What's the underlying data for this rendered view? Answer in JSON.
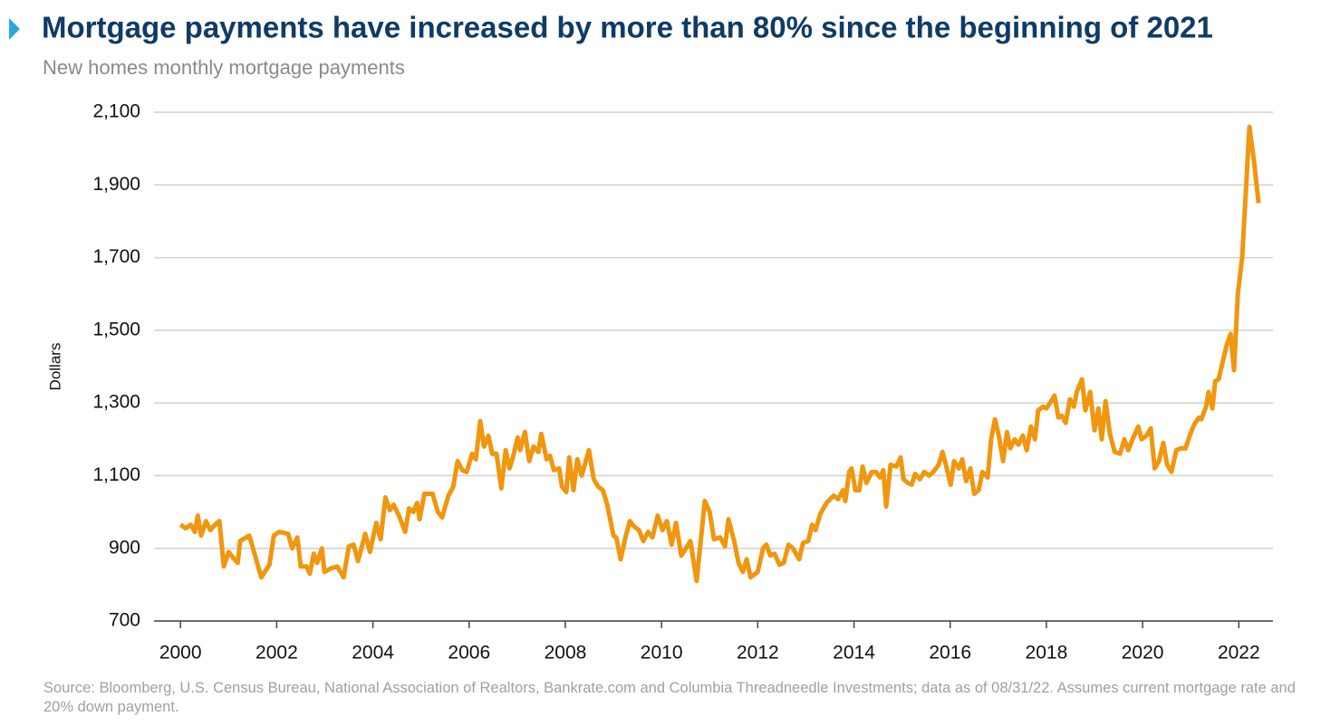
{
  "chart_data": {
    "type": "line",
    "title": "Mortgage payments have increased by more than 80% since the beginning of 2021",
    "subtitle": "New homes monthly mortgage payments",
    "y_label": "Dollars",
    "source": "Source: Bloomberg, U.S. Census Bureau, National Association of Realtors, Bankrate.com and Columbia Threadneedle Investments; data as of 08/31/22. Assumes current mortgage rate and 20% down payment.",
    "xlim": [
      1999.45,
      2022.71
    ],
    "xticks": [
      2000,
      2002,
      2004,
      2006,
      2008,
      2010,
      2012,
      2014,
      2016,
      2018,
      2020,
      2022
    ],
    "ylim": [
      700,
      2100
    ],
    "yticks": [
      700,
      {
        "value": 900,
        "label": "900"
      },
      {
        "value": 1100,
        "label": "1,100"
      },
      {
        "value": 1300,
        "label": "1,300"
      },
      {
        "value": 1500,
        "label": "1,500"
      },
      {
        "value": 1700,
        "label": "1,700"
      },
      {
        "value": 1900,
        "label": "1,900"
      },
      {
        "value": 2100,
        "label": "2,100"
      }
    ],
    "grid": true,
    "x": [
      2000.0,
      2000.11,
      2000.21,
      2000.3,
      2000.36,
      2000.43,
      2000.53,
      2000.62,
      2000.72,
      2000.81,
      2000.9,
      2001.0,
      2001.09,
      2001.19,
      2001.24,
      2001.43,
      2001.53,
      2001.68,
      2001.85,
      2001.94,
      2002.05,
      2002.24,
      2002.32,
      2002.43,
      2002.5,
      2002.62,
      2002.69,
      2002.77,
      2002.84,
      2002.94,
      2002.99,
      2003.13,
      2003.26,
      2003.39,
      2003.5,
      2003.6,
      2003.69,
      2003.84,
      2003.94,
      2004.07,
      2004.16,
      2004.26,
      2004.35,
      2004.43,
      2004.54,
      2004.67,
      2004.75,
      2004.84,
      2004.92,
      2004.97,
      2005.07,
      2005.24,
      2005.35,
      2005.44,
      2005.57,
      2005.67,
      2005.76,
      2005.86,
      2005.95,
      2006.06,
      2006.14,
      2006.23,
      2006.31,
      2006.4,
      2006.48,
      2006.57,
      2006.67,
      2006.76,
      2006.84,
      2006.91,
      2007.01,
      2007.06,
      2007.16,
      2007.25,
      2007.34,
      2007.44,
      2007.5,
      2007.61,
      2007.68,
      2007.76,
      2007.87,
      2007.93,
      2008.02,
      2008.08,
      2008.17,
      2008.25,
      2008.34,
      2008.49,
      2008.59,
      2008.68,
      2008.78,
      2008.87,
      2009.0,
      2009.06,
      2009.15,
      2009.25,
      2009.34,
      2009.43,
      2009.53,
      2009.62,
      2009.72,
      2009.81,
      2009.92,
      2010.02,
      2010.11,
      2010.21,
      2010.3,
      2010.41,
      2010.51,
      2010.6,
      2010.73,
      2010.9,
      2011.0,
      2011.09,
      2011.22,
      2011.32,
      2011.39,
      2011.51,
      2011.6,
      2011.69,
      2011.77,
      2011.85,
      2012.0,
      2012.11,
      2012.18,
      2012.26,
      2012.35,
      2012.45,
      2012.54,
      2012.64,
      2012.73,
      2012.86,
      2012.94,
      2013.05,
      2013.13,
      2013.2,
      2013.3,
      2013.43,
      2013.58,
      2013.67,
      2013.77,
      2013.82,
      2013.9,
      2013.95,
      2014.03,
      2014.11,
      2014.18,
      2014.26,
      2014.37,
      2014.46,
      2014.54,
      2014.61,
      2014.67,
      2014.76,
      2014.88,
      2014.97,
      2015.03,
      2015.12,
      2015.2,
      2015.27,
      2015.37,
      2015.46,
      2015.56,
      2015.65,
      2015.76,
      2015.84,
      2015.93,
      2016.01,
      2016.08,
      2016.18,
      2016.25,
      2016.33,
      2016.42,
      2016.5,
      2016.59,
      2016.67,
      2016.78,
      2016.85,
      2016.93,
      2017.01,
      2017.1,
      2017.18,
      2017.25,
      2017.34,
      2017.42,
      2017.51,
      2017.59,
      2017.68,
      2017.76,
      2017.83,
      2017.93,
      2018.0,
      2018.1,
      2018.17,
      2018.25,
      2018.32,
      2018.4,
      2018.49,
      2018.57,
      2018.63,
      2018.74,
      2018.81,
      2018.91,
      2019.0,
      2019.08,
      2019.15,
      2019.23,
      2019.32,
      2019.42,
      2019.53,
      2019.62,
      2019.7,
      2019.79,
      2019.91,
      2019.98,
      2020.08,
      2020.17,
      2020.25,
      2020.34,
      2020.43,
      2020.51,
      2020.6,
      2020.7,
      2020.79,
      2020.89,
      2020.98,
      2021.07,
      2021.17,
      2021.22,
      2021.32,
      2021.37,
      2021.45,
      2021.51,
      2021.58,
      2021.66,
      2021.75,
      2021.83,
      2021.9,
      2021.98,
      2022.07,
      2022.22,
      2022.32,
      2022.41
    ],
    "series": [
      {
        "name": "New homes monthly mortgage payments",
        "color": "#f0960f",
        "values": [
          965,
          955,
          965,
          945,
          990,
          935,
          975,
          950,
          965,
          975,
          850,
          890,
          875,
          860,
          920,
          935,
          890,
          820,
          855,
          935,
          945,
          940,
          900,
          930,
          850,
          850,
          830,
          885,
          860,
          900,
          835,
          845,
          850,
          820,
          905,
          910,
          865,
          940,
          890,
          970,
          925,
          1040,
          1005,
          1020,
          990,
          945,
          1010,
          1000,
          1025,
          980,
          1050,
          1050,
          1000,
          985,
          1045,
          1070,
          1140,
          1115,
          1110,
          1160,
          1145,
          1250,
          1180,
          1210,
          1160,
          1160,
          1065,
          1170,
          1120,
          1150,
          1205,
          1170,
          1220,
          1140,
          1180,
          1165,
          1215,
          1145,
          1155,
          1115,
          1120,
          1070,
          1055,
          1150,
          1060,
          1145,
          1100,
          1170,
          1090,
          1070,
          1060,
          1020,
          935,
          930,
          870,
          930,
          975,
          960,
          950,
          920,
          945,
          930,
          990,
          950,
          975,
          910,
          970,
          880,
          900,
          920,
          810,
          1030,
          1000,
          925,
          930,
          905,
          980,
          920,
          860,
          835,
          870,
          820,
          835,
          900,
          910,
          880,
          885,
          855,
          860,
          910,
          900,
          870,
          915,
          920,
          965,
          950,
          995,
          1025,
          1045,
          1035,
          1060,
          1030,
          1110,
          1120,
          1060,
          1060,
          1125,
          1080,
          1110,
          1110,
          1095,
          1115,
          1015,
          1130,
          1125,
          1150,
          1090,
          1080,
          1075,
          1105,
          1090,
          1110,
          1100,
          1110,
          1130,
          1165,
          1120,
          1075,
          1140,
          1120,
          1145,
          1085,
          1120,
          1050,
          1060,
          1110,
          1095,
          1200,
          1255,
          1210,
          1140,
          1220,
          1175,
          1200,
          1185,
          1210,
          1170,
          1235,
          1200,
          1280,
          1290,
          1285,
          1305,
          1320,
          1260,
          1265,
          1245,
          1310,
          1290,
          1330,
          1365,
          1280,
          1330,
          1225,
          1285,
          1200,
          1305,
          1215,
          1165,
          1160,
          1200,
          1170,
          1200,
          1235,
          1200,
          1210,
          1230,
          1120,
          1140,
          1190,
          1130,
          1110,
          1170,
          1175,
          1175,
          1210,
          1240,
          1260,
          1255,
          1290,
          1330,
          1285,
          1360,
          1365,
          1410,
          1460,
          1490,
          1390,
          1600,
          1700,
          2060,
          1960,
          1850
        ]
      }
    ]
  }
}
